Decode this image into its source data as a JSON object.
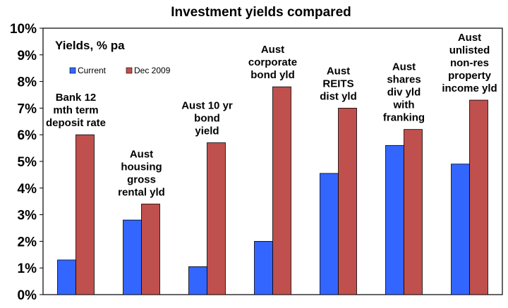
{
  "chart_data": {
    "type": "bar",
    "title": "Investment yields compared",
    "ylabel": "Yields, % pa",
    "ylim": [
      0,
      10
    ],
    "yticks": [
      "0%",
      "1%",
      "2%",
      "3%",
      "4%",
      "5%",
      "6%",
      "7%",
      "8%",
      "9%",
      "10%"
    ],
    "grid": false,
    "legend_position": "top-left",
    "categories": [
      [
        "Bank 12",
        "mth term",
        "deposit rate"
      ],
      [
        "Aust",
        "housing",
        "gross",
        "rental yld"
      ],
      [
        "Aust 10 yr",
        "bond",
        "yield"
      ],
      [
        "Aust",
        "corporate",
        "bond yld"
      ],
      [
        "Aust",
        "REITS",
        "dist yld"
      ],
      [
        "Aust",
        "shares",
        "div yld",
        "with",
        "franking"
      ],
      [
        "Aust",
        "unlisted",
        "non-res",
        "property",
        "income yld"
      ]
    ],
    "series": [
      {
        "name": "Current",
        "color": "#3366ff",
        "values": [
          1.3,
          2.8,
          1.05,
          2.0,
          4.55,
          5.6,
          4.9
        ]
      },
      {
        "name": "Dec 2009",
        "color": "#c0504d",
        "values": [
          6.0,
          3.4,
          5.7,
          7.8,
          7.0,
          6.2,
          7.3
        ]
      }
    ]
  }
}
